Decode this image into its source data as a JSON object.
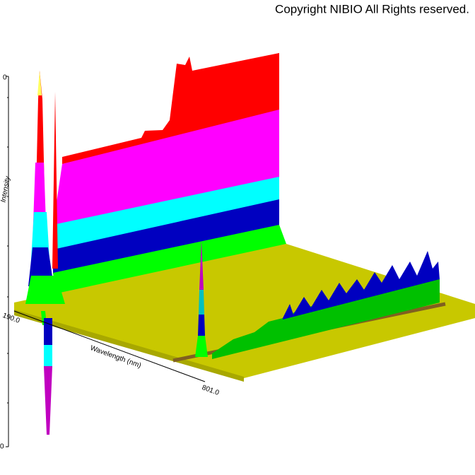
{
  "header": {
    "copyright": "Copyright NIBIO All Rights reserved."
  },
  "axes": {
    "intensity_label": "Intensity",
    "wavelength_label": "Wavelength (nm)",
    "wavelength_start": "190.0",
    "wavelength_end": "801.0",
    "intensity_top": "0",
    "intensity_bottom": "0"
  }
}
